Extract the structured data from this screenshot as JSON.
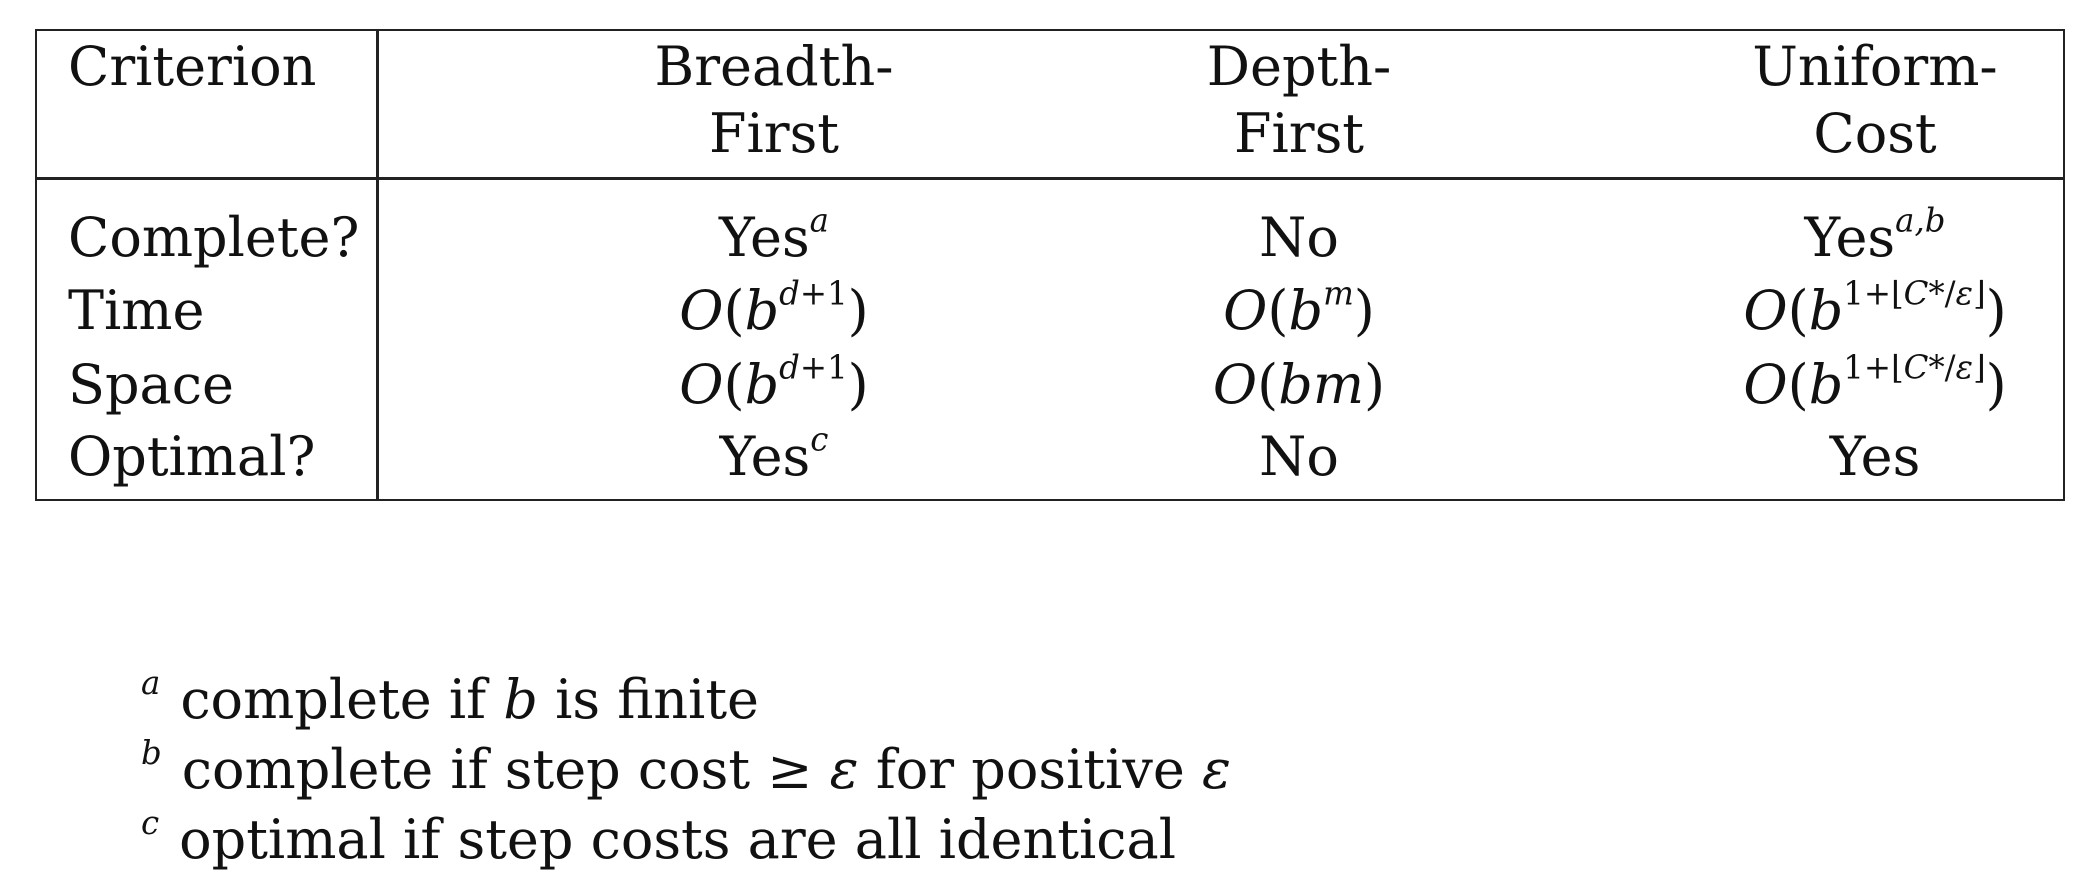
{
  "table": {
    "headers": {
      "criterion": "Criterion",
      "bfs_line1": "Breadth-",
      "bfs_line2": "First",
      "dfs_line1": "Depth-",
      "dfs_line2": "First",
      "ucs_line1": "Uniform-",
      "ucs_line2": "Cost"
    },
    "rows": [
      {
        "label": "Complete?",
        "bfs": "Yes",
        "bfs_sup": "a",
        "dfs": "No",
        "ucs": "Yes",
        "ucs_sup": "a,b"
      },
      {
        "label": "Time",
        "bfs": "O(b^{d+1})",
        "dfs": "O(b^m)",
        "ucs": "O(b^{1+⌊C*/ε⌋})"
      },
      {
        "label": "Space",
        "bfs": "O(b^{d+1})",
        "dfs": "O(bm)",
        "ucs": "O(b^{1+⌊C*/ε⌋})"
      },
      {
        "label": "Optimal?",
        "bfs": "Yes",
        "bfs_sup": "c",
        "dfs": "No",
        "ucs": "Yes"
      }
    ]
  },
  "footnotes": [
    {
      "mark": "a",
      "text": "complete if b is finite"
    },
    {
      "mark": "b",
      "text": "complete if step cost ≥ ε for positive ε"
    },
    {
      "mark": "c",
      "text": "optimal if step costs are all identical"
    }
  ]
}
